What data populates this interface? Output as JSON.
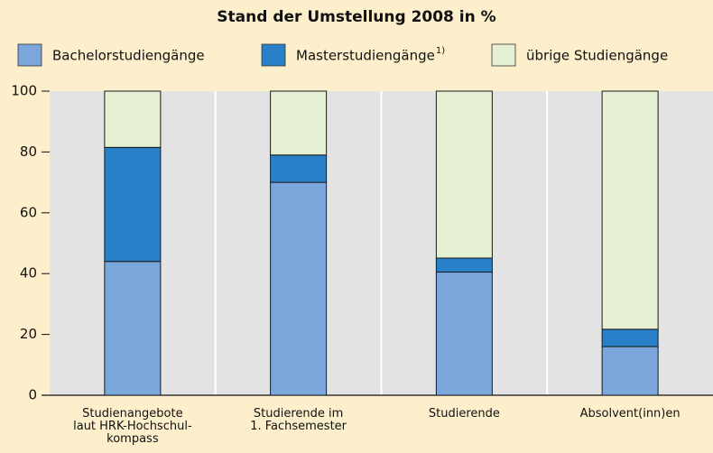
{
  "chart_data": {
    "type": "stacked_bar",
    "title": "Stand der Umstellung 2008 in %",
    "legend_footnote": "1)",
    "categories": [
      "Studienangebote\nlaut HRK-Hochschul-\nkompass",
      "Studierende im\n1. Fachsemester",
      "Studierende",
      "Absolvent(inn)en"
    ],
    "series": [
      {
        "name": "Bachelorstudiengänge",
        "color": "#7ba7dc",
        "values": [
          44,
          70,
          40.5,
          16
        ]
      },
      {
        "name": "Masterstudiengänge",
        "color": "#2a80c8",
        "values": [
          37.5,
          9,
          4.6,
          5.7
        ]
      },
      {
        "name": "übrige Studiengänge",
        "color": "#e6f0d2",
        "values": [
          18.5,
          21,
          54.9,
          78.3
        ]
      }
    ],
    "ylim": [
      0,
      100
    ],
    "yticks": [
      0,
      20,
      40,
      60,
      80,
      100
    ],
    "grid": false,
    "legend": "top"
  }
}
